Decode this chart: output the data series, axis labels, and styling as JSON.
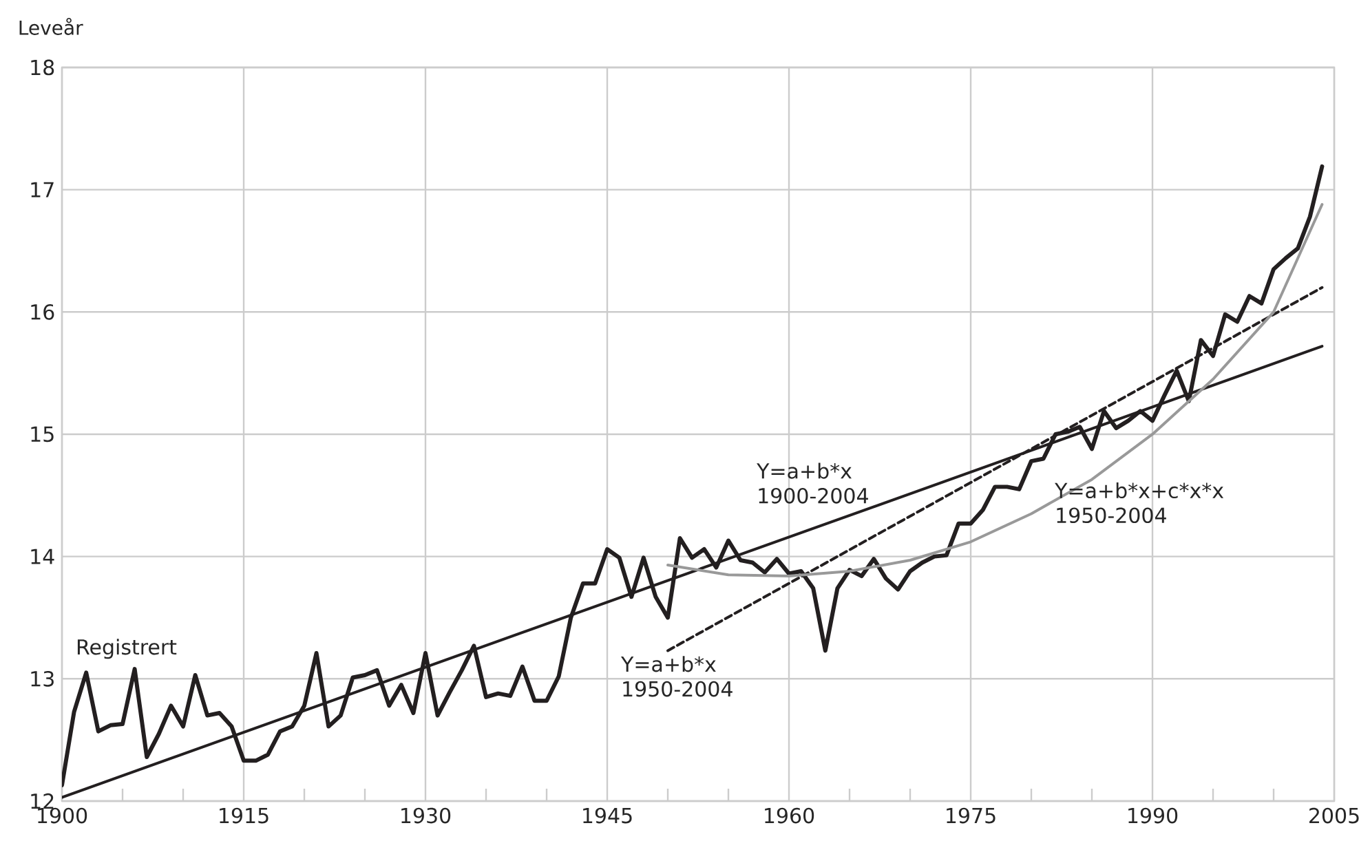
{
  "chart_data": {
    "type": "line",
    "ylabel": "Leveår",
    "xlim": [
      1900,
      2005
    ],
    "ylim": [
      12,
      18
    ],
    "xticks": [
      1900,
      {
        "value": 1905,
        "label": null
      },
      {
        "value": 1910,
        "label": null
      },
      1915,
      {
        "value": 1920,
        "label": null
      },
      {
        "value": 1925,
        "label": null
      },
      1930,
      {
        "value": 1935,
        "label": null
      },
      {
        "value": 1940,
        "label": null
      },
      1945,
      {
        "value": 1950,
        "label": null
      },
      {
        "value": 1955,
        "label": null
      },
      1960,
      {
        "value": 1965,
        "label": null
      },
      {
        "value": 1970,
        "label": null
      },
      1975,
      {
        "value": 1980,
        "label": null
      },
      {
        "value": 1985,
        "label": null
      },
      1990,
      {
        "value": 1995,
        "label": null
      },
      {
        "value": 2000,
        "label": null
      },
      2005
    ],
    "yticks": [
      12,
      13,
      14,
      15,
      16,
      17,
      18
    ],
    "grid": true,
    "series": [
      {
        "name": "Registrert",
        "color": "#231f20",
        "x": [
          1900,
          1901,
          1902,
          1903,
          1904,
          1905,
          1906,
          1907,
          1908,
          1909,
          1910,
          1911,
          1912,
          1913,
          1914,
          1915,
          1916,
          1917,
          1918,
          1919,
          1920,
          1921,
          1922,
          1923,
          1924,
          1925,
          1926,
          1927,
          1928,
          1929,
          1930,
          1931,
          1932,
          1933,
          1934,
          1935,
          1936,
          1937,
          1938,
          1939,
          1940,
          1941,
          1942,
          1943,
          1944,
          1945,
          1946,
          1947,
          1948,
          1949,
          1950,
          1951,
          1952,
          1953,
          1954,
          1955,
          1956,
          1957,
          1958,
          1959,
          1960,
          1961,
          1962,
          1963,
          1964,
          1965,
          1966,
          1967,
          1968,
          1969,
          1970,
          1971,
          1972,
          1973,
          1974,
          1975,
          1976,
          1977,
          1978,
          1979,
          1980,
          1981,
          1982,
          1983,
          1984,
          1985,
          1986,
          1987,
          1988,
          1989,
          1990,
          1991,
          1992,
          1993,
          1994,
          1995,
          1996,
          1997,
          1998,
          1999,
          2000,
          2001,
          2002,
          2003,
          2004
        ],
        "values": [
          12.13,
          12.73,
          13.05,
          12.57,
          12.62,
          12.63,
          13.08,
          12.36,
          12.55,
          12.78,
          12.61,
          13.03,
          12.7,
          12.72,
          12.61,
          12.33,
          12.33,
          12.38,
          12.57,
          12.61,
          12.78,
          13.21,
          12.61,
          12.7,
          13.01,
          13.03,
          13.07,
          12.78,
          12.95,
          12.72,
          13.21,
          12.7,
          12.89,
          13.07,
          13.27,
          12.85,
          12.88,
          12.86,
          13.1,
          12.82,
          12.82,
          13.02,
          13.5,
          13.78,
          13.78,
          14.06,
          13.99,
          13.67,
          13.99,
          13.67,
          13.5,
          14.15,
          13.99,
          14.06,
          13.91,
          14.13,
          13.97,
          13.95,
          13.87,
          13.98,
          13.86,
          13.88,
          13.74,
          13.23,
          13.74,
          13.89,
          13.84,
          13.98,
          13.82,
          13.73,
          13.88,
          13.95,
          14.0,
          14.01,
          14.27,
          14.27,
          14.38,
          14.57,
          14.57,
          14.55,
          14.78,
          14.8,
          15.0,
          15.02,
          15.06,
          14.88,
          15.19,
          15.05,
          15.11,
          15.19,
          15.11,
          15.32,
          15.52,
          15.27,
          15.77,
          15.64,
          15.98,
          15.92,
          16.13,
          16.07,
          16.35,
          16.44,
          16.52,
          16.78,
          17.19
        ]
      },
      {
        "name": "Y=a+b*x 1900-2004",
        "color": "#231f20",
        "x": [
          1900,
          2004
        ],
        "values": [
          12.03,
          15.72
        ]
      },
      {
        "name": "Y=a+b*x 1950-2004",
        "color": "#231f20",
        "line_style": "dashed",
        "x": [
          1950,
          2004
        ],
        "values": [
          13.23,
          16.2
        ]
      },
      {
        "name": "Y=a+b*x+c*x*x 1950-2004",
        "color": "#999999",
        "x": [
          1950,
          1955,
          1960,
          1965,
          1970,
          1975,
          1980,
          1985,
          1990,
          1995,
          2000,
          2004
        ],
        "values": [
          13.93,
          13.85,
          13.84,
          13.88,
          13.97,
          14.12,
          14.35,
          14.63,
          15.0,
          15.45,
          16.0,
          16.88
        ]
      }
    ]
  }
}
